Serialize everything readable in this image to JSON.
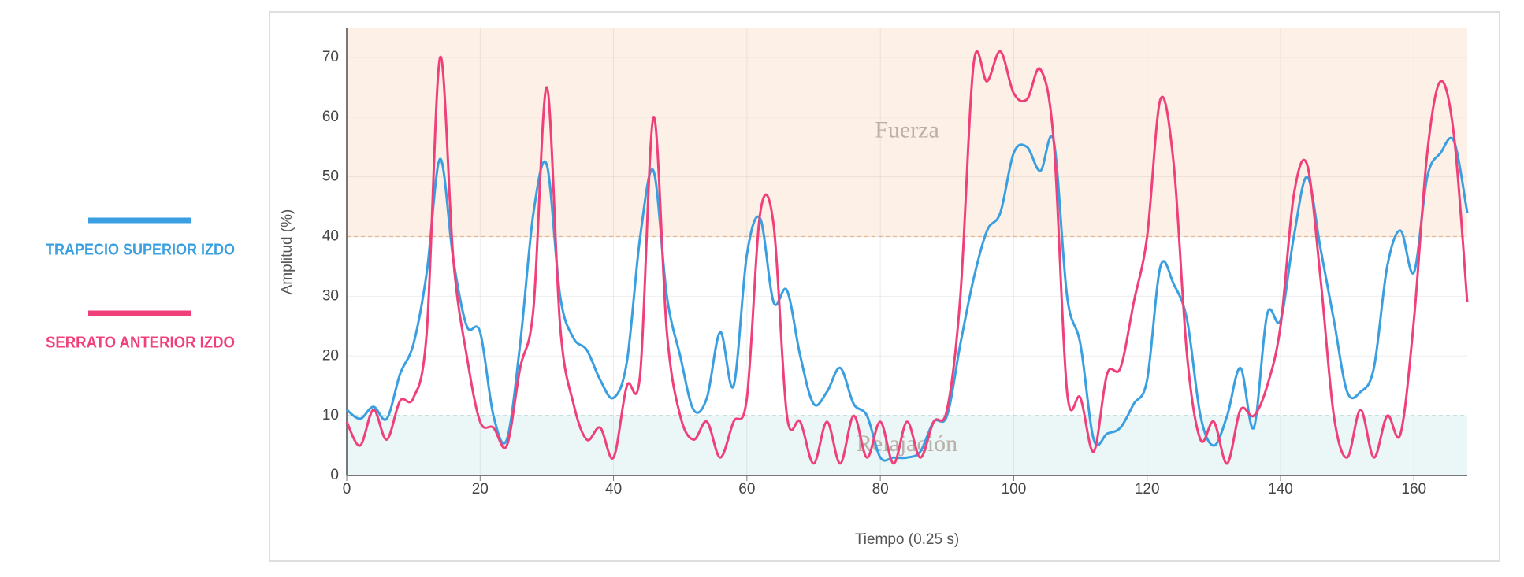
{
  "chart_data": {
    "type": "line",
    "xlabel": "Tiempo (0.25 s)",
    "ylabel": "Amplitud (%)",
    "xlim": [
      0,
      168
    ],
    "ylim": [
      0,
      75
    ],
    "xticks": [
      0,
      20,
      40,
      60,
      80,
      100,
      120,
      140,
      160
    ],
    "yticks": [
      0,
      10,
      20,
      30,
      40,
      50,
      60,
      70
    ],
    "grid": true,
    "legend": "left",
    "bands": [
      {
        "name": "Fuerza",
        "range": [
          40,
          75
        ],
        "color": "#fdf1e7",
        "line": "#f3c9a6"
      },
      {
        "name": "Relajación",
        "range": [
          0,
          10
        ],
        "color": "#ebf6f7",
        "line": "#a9d6db"
      }
    ],
    "x": [
      0,
      2,
      4,
      6,
      8,
      10,
      12,
      14,
      16,
      18,
      20,
      22,
      24,
      26,
      28,
      30,
      32,
      34,
      36,
      38,
      40,
      42,
      44,
      46,
      48,
      50,
      52,
      54,
      56,
      58,
      60,
      62,
      64,
      66,
      68,
      70,
      72,
      74,
      76,
      78,
      80,
      82,
      84,
      86,
      88,
      90,
      92,
      94,
      96,
      98,
      100,
      102,
      104,
      106,
      108,
      110,
      112,
      114,
      116,
      118,
      120,
      122,
      124,
      126,
      128,
      130,
      132,
      134,
      136,
      138,
      140,
      142,
      144,
      146,
      148,
      150,
      152,
      154,
      156,
      158,
      160,
      162,
      164,
      166,
      168
    ],
    "series": [
      {
        "name": "TRAPECIO SUPERIOR IZDO",
        "color": "#3a9fe0",
        "values": [
          11,
          9.5,
          11.5,
          9.5,
          17,
          22,
          34,
          53,
          36,
          25,
          24,
          10,
          6,
          22,
          44,
          52,
          30,
          23,
          21,
          16,
          13,
          19,
          40,
          51,
          30,
          20,
          11,
          13,
          24,
          15,
          37,
          43,
          29,
          31,
          20,
          12,
          14,
          18,
          12,
          10,
          3,
          3,
          3,
          4,
          9,
          10,
          22,
          33,
          41,
          44,
          54,
          55,
          51,
          56,
          30,
          22,
          6,
          7,
          8,
          12,
          16,
          35,
          32,
          26,
          10,
          5,
          10,
          18,
          8,
          27,
          26,
          40,
          50,
          38,
          26,
          14,
          14,
          18,
          35,
          41,
          34,
          50,
          54,
          56,
          44
        ]
      },
      {
        "name": "SERRATO ANTERIOR IZDO",
        "color": "#f0407a",
        "values": [
          9,
          5,
          11,
          6,
          12.5,
          13,
          24,
          70,
          36,
          20,
          9,
          8,
          5,
          18,
          28,
          65,
          25,
          12,
          6,
          8,
          3,
          15,
          17,
          60,
          24,
          10,
          6,
          9,
          3,
          9,
          13,
          44,
          42,
          10,
          9,
          2,
          9,
          2,
          10,
          3,
          9,
          2,
          9,
          3,
          9,
          11,
          30,
          69,
          66,
          71,
          64,
          63,
          68,
          56,
          14,
          13,
          4,
          17,
          18,
          29,
          40,
          63,
          52,
          20,
          6,
          9,
          2,
          11,
          10,
          15,
          25,
          47,
          52,
          33,
          10,
          3,
          11,
          3,
          10,
          7,
          26,
          54,
          66,
          57,
          29
        ]
      }
    ]
  }
}
